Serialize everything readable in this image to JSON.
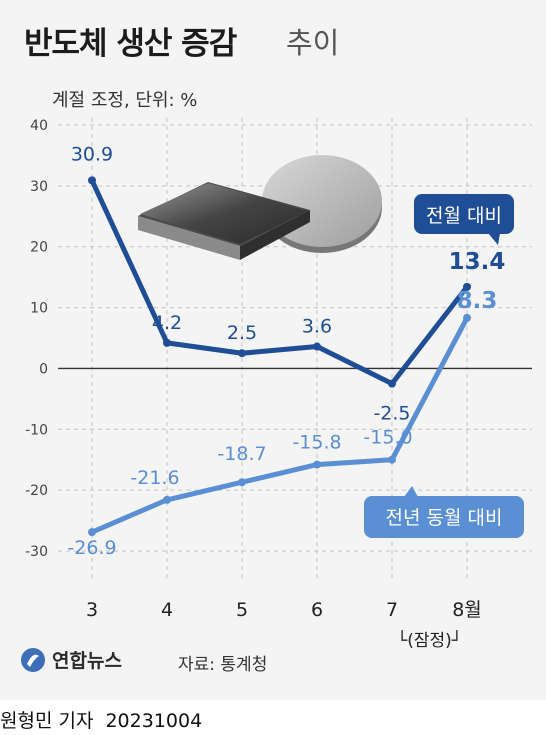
{
  "title": {
    "main": "반도체 생산 증감",
    "sub": "추이"
  },
  "unit_note": "계절 조정, 단위: %",
  "chart_data": {
    "type": "line",
    "categories": [
      "3",
      "4",
      "5",
      "6",
      "7",
      "8월"
    ],
    "category_note": "└(잠정)┘",
    "ylim": [
      -30,
      40
    ],
    "yticks": [
      40,
      30,
      20,
      10,
      0,
      -10,
      -20,
      -30
    ],
    "series": [
      {
        "name": "전월 대비",
        "values": [
          30.9,
          4.2,
          2.5,
          3.6,
          -2.5,
          13.4
        ],
        "labels": [
          "30.9",
          "4.2",
          "2.5",
          "3.6",
          "-2.5",
          "13.4"
        ],
        "color": "#1f4e96"
      },
      {
        "name": "전년 동월 대비",
        "values": [
          -26.9,
          -21.6,
          -18.7,
          -15.8,
          -15.0,
          8.3
        ],
        "labels": [
          "-26.9",
          "-21.6",
          "-18.7",
          "-15.8",
          "-15.0",
          "8.3"
        ],
        "color": "#5a8fd4"
      }
    ],
    "grid": true
  },
  "footer": {
    "logo": "연합뉴스",
    "source": "자료: 통계청"
  },
  "byline": {
    "author": "원형민 기자",
    "date": "20231004"
  },
  "colors": {
    "accent_dark": "#1f4e96",
    "accent_light": "#5a8fd4",
    "background": "#f4f4f4"
  }
}
